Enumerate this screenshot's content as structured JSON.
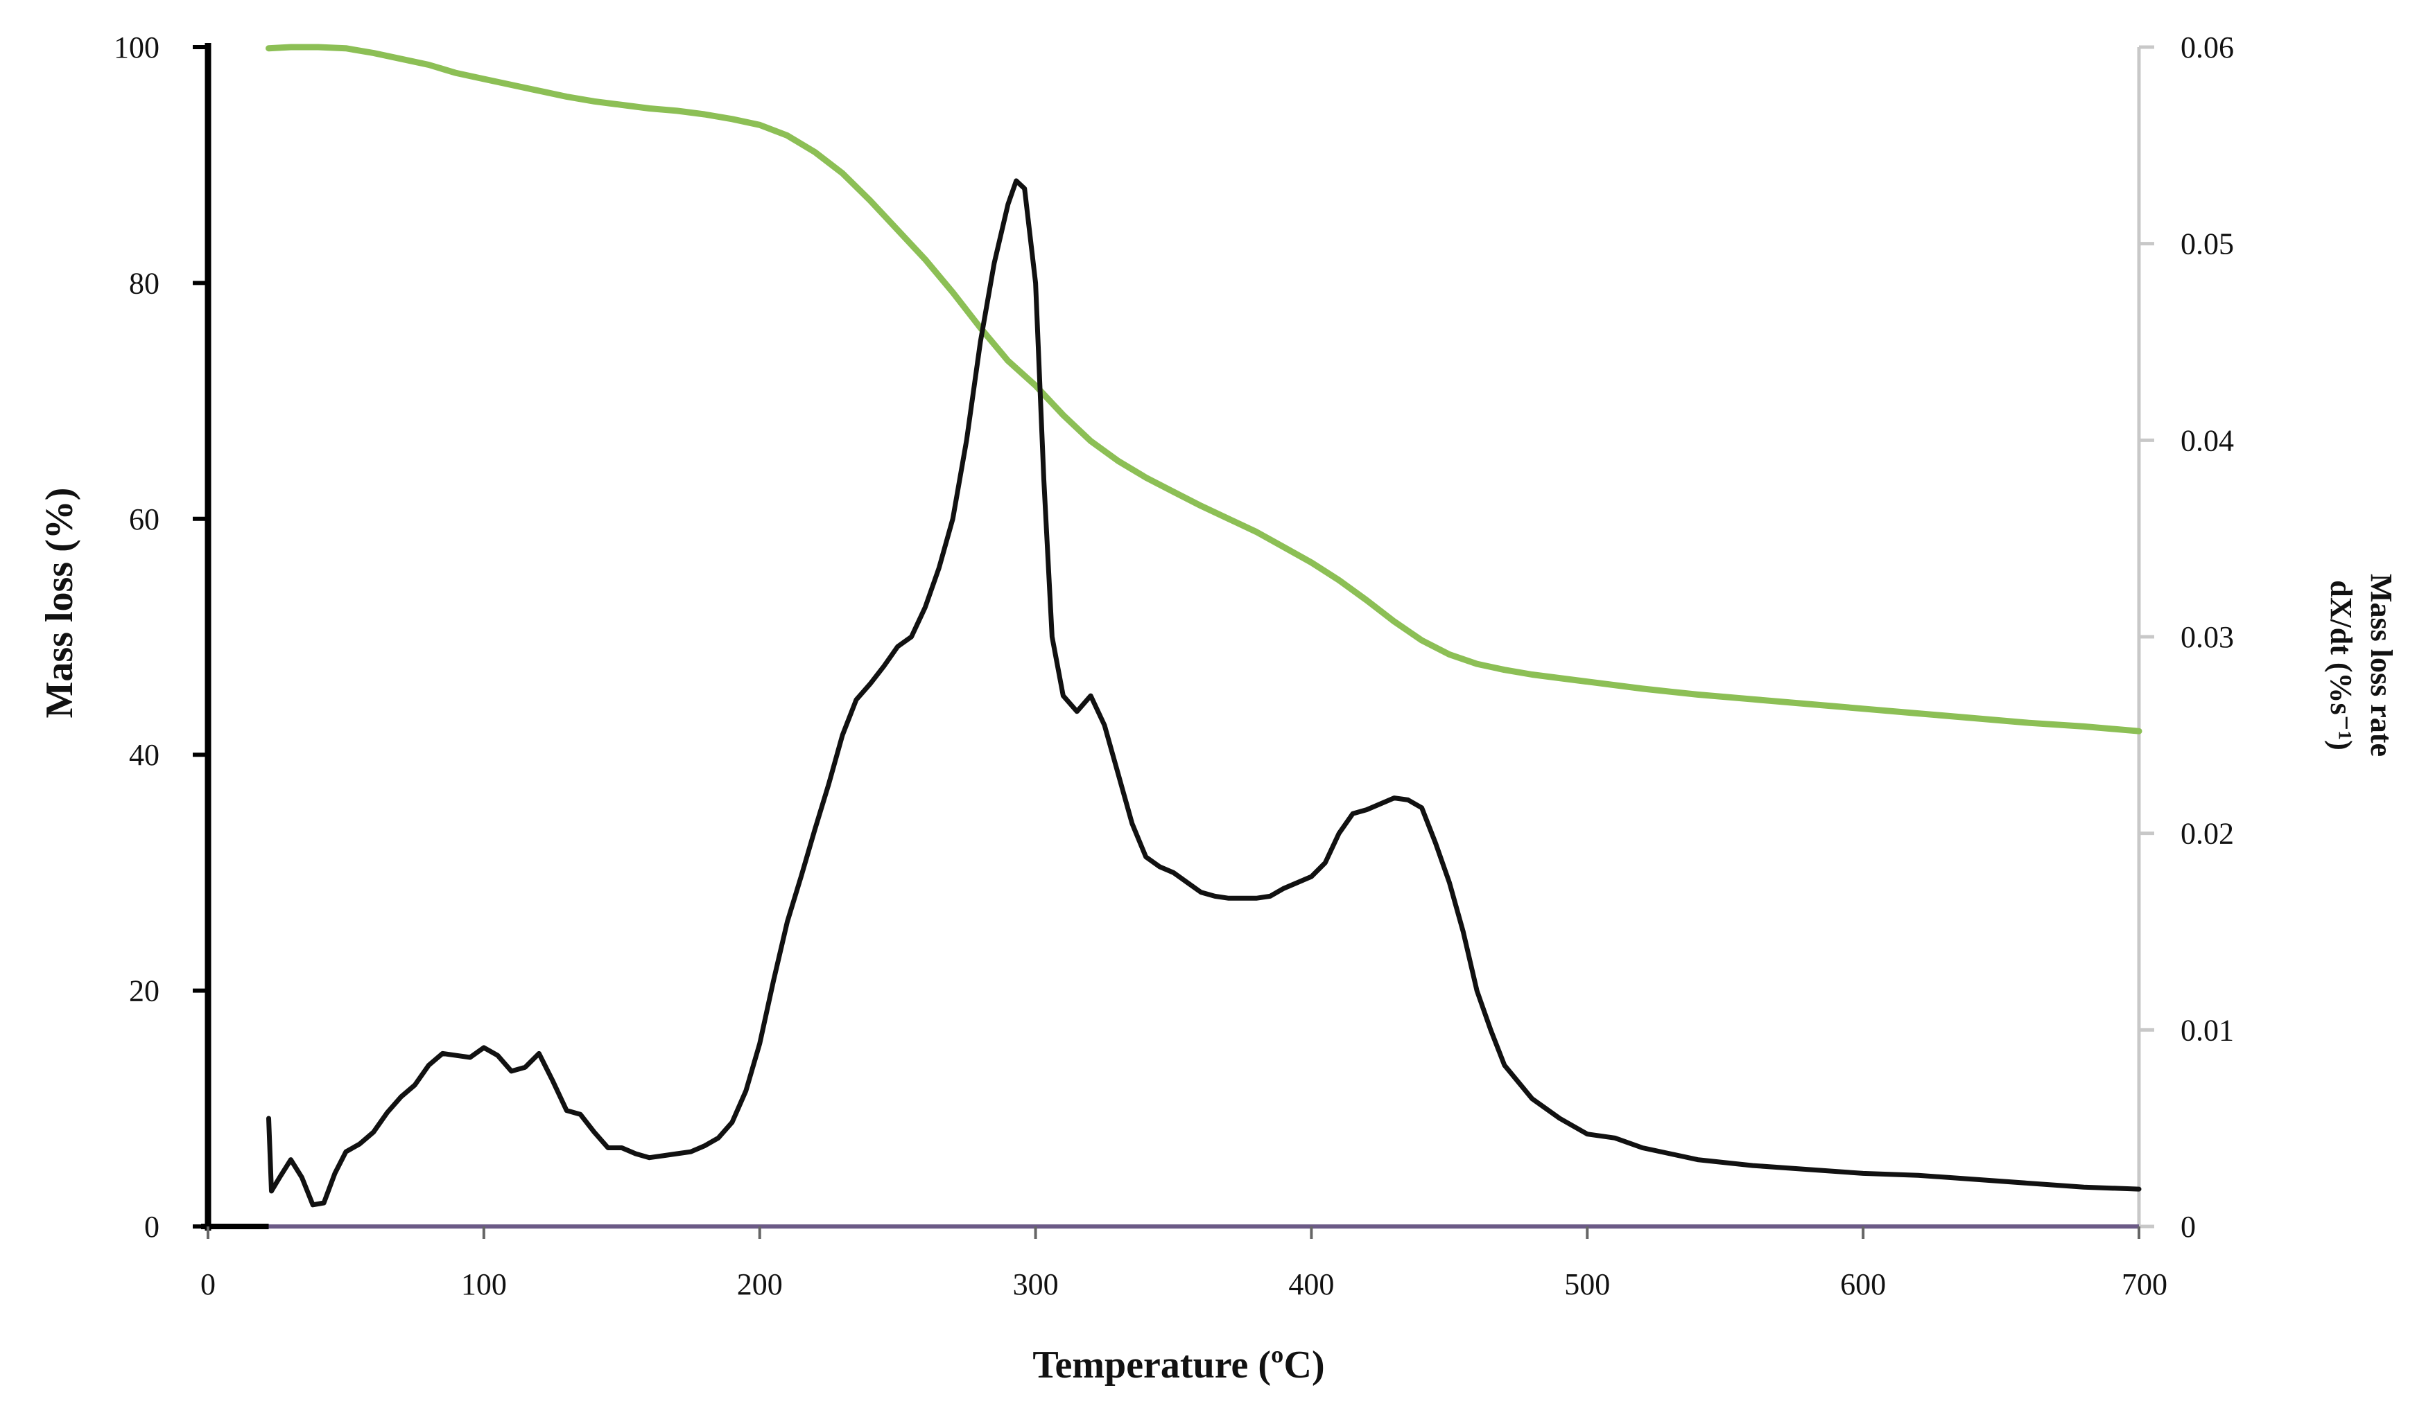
{
  "chart_data": {
    "type": "line",
    "xlabel": "Temperature (ºC)",
    "ylabel": "Mass loss (%)",
    "y2label_line1": "Mass loss rate",
    "y2label_line2": "dX/dt (%s⁻¹)",
    "xlim": [
      0,
      700
    ],
    "ylim": [
      0,
      100
    ],
    "y2lim": [
      0,
      0.06
    ],
    "x_ticks": [
      "0",
      "100",
      "200",
      "300",
      "400",
      "500",
      "600",
      "700"
    ],
    "y_ticks": [
      "0",
      "20",
      "40",
      "60",
      "80",
      "100"
    ],
    "y2_ticks": [
      "0",
      "0.01",
      "0.02",
      "0.03",
      "0.04",
      "0.05",
      "0.06"
    ],
    "series": [
      {
        "name": "Mass loss",
        "axis": "left",
        "color": "#8cbf55",
        "x": [
          22,
          30,
          40,
          50,
          60,
          70,
          80,
          90,
          100,
          110,
          120,
          130,
          140,
          150,
          160,
          170,
          180,
          190,
          200,
          210,
          220,
          230,
          240,
          250,
          260,
          270,
          280,
          290,
          300,
          310,
          320,
          330,
          340,
          350,
          360,
          370,
          380,
          390,
          400,
          410,
          420,
          430,
          440,
          450,
          460,
          470,
          480,
          490,
          500,
          520,
          540,
          560,
          580,
          600,
          620,
          640,
          660,
          680,
          700
        ],
        "y": [
          99.9,
          100.0,
          100.0,
          99.9,
          99.5,
          99.0,
          98.5,
          97.8,
          97.3,
          96.8,
          96.3,
          95.8,
          95.4,
          95.1,
          94.8,
          94.6,
          94.3,
          93.9,
          93.4,
          92.5,
          91.1,
          89.3,
          87.0,
          84.5,
          82.0,
          79.2,
          76.2,
          73.4,
          71.3,
          68.8,
          66.6,
          64.9,
          63.5,
          62.3,
          61.1,
          60.0,
          58.9,
          57.6,
          56.3,
          54.8,
          53.1,
          51.3,
          49.7,
          48.5,
          47.7,
          47.2,
          46.8,
          46.5,
          46.2,
          45.6,
          45.1,
          44.7,
          44.3,
          43.9,
          43.5,
          43.1,
          42.7,
          42.4,
          42.0
        ]
      },
      {
        "name": "Mass loss rate",
        "axis": "right",
        "color": "#111111",
        "x": [
          22,
          23,
          26,
          30,
          34,
          38,
          42,
          46,
          50,
          55,
          60,
          65,
          70,
          75,
          80,
          85,
          90,
          95,
          100,
          105,
          110,
          115,
          120,
          125,
          130,
          135,
          140,
          145,
          150,
          155,
          160,
          165,
          170,
          175,
          180,
          185,
          190,
          195,
          200,
          205,
          210,
          215,
          220,
          225,
          230,
          235,
          240,
          245,
          250,
          255,
          260,
          265,
          270,
          275,
          280,
          285,
          290,
          293,
          296,
          300,
          303,
          306,
          310,
          315,
          320,
          325,
          330,
          335,
          340,
          345,
          350,
          355,
          360,
          365,
          370,
          375,
          380,
          385,
          390,
          395,
          400,
          405,
          410,
          415,
          420,
          425,
          430,
          435,
          440,
          445,
          450,
          455,
          460,
          465,
          470,
          480,
          490,
          500,
          510,
          520,
          530,
          540,
          560,
          580,
          600,
          620,
          640,
          660,
          680,
          700
        ],
        "y": [
          0.0055,
          0.0018,
          0.0025,
          0.0034,
          0.0025,
          0.0011,
          0.0012,
          0.0027,
          0.0038,
          0.0042,
          0.0048,
          0.0058,
          0.0066,
          0.0072,
          0.0082,
          0.0088,
          0.0087,
          0.0086,
          0.0091,
          0.0087,
          0.0079,
          0.0081,
          0.0088,
          0.0074,
          0.0059,
          0.0057,
          0.0048,
          0.004,
          0.004,
          0.0037,
          0.0035,
          0.0036,
          0.0037,
          0.0038,
          0.0041,
          0.0045,
          0.0053,
          0.0069,
          0.0093,
          0.0125,
          0.0155,
          0.0178,
          0.0202,
          0.0225,
          0.025,
          0.0268,
          0.0276,
          0.0285,
          0.0295,
          0.03,
          0.0315,
          0.0335,
          0.036,
          0.04,
          0.045,
          0.049,
          0.052,
          0.0532,
          0.0528,
          0.048,
          0.038,
          0.03,
          0.027,
          0.0262,
          0.027,
          0.0255,
          0.023,
          0.0205,
          0.0188,
          0.0183,
          0.018,
          0.0175,
          0.017,
          0.0168,
          0.0167,
          0.0167,
          0.0167,
          0.0168,
          0.0172,
          0.0175,
          0.0178,
          0.0185,
          0.02,
          0.021,
          0.0212,
          0.0215,
          0.0218,
          0.0217,
          0.0213,
          0.0195,
          0.0175,
          0.015,
          0.012,
          0.01,
          0.0082,
          0.0065,
          0.0055,
          0.0047,
          0.0045,
          0.004,
          0.0037,
          0.0034,
          0.0031,
          0.0029,
          0.0027,
          0.0026,
          0.0024,
          0.0022,
          0.002,
          0.0019
        ]
      }
    ]
  }
}
